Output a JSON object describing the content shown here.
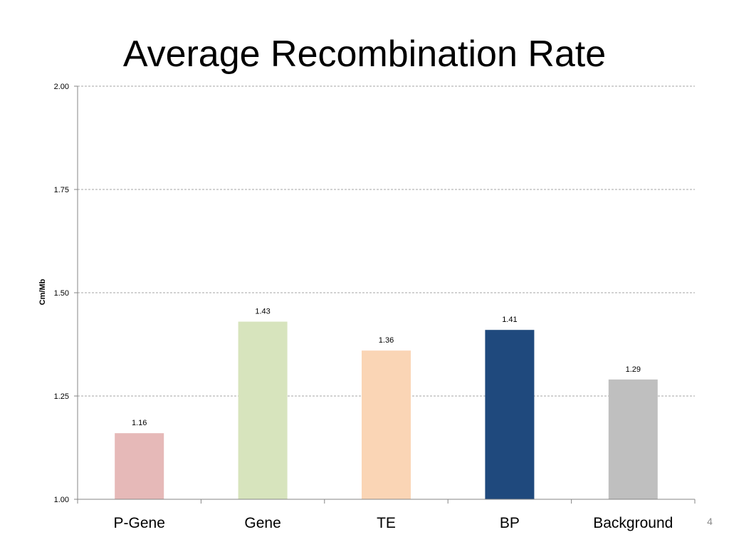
{
  "slide": {
    "number": "4"
  },
  "chart_data": {
    "type": "bar",
    "title": "Average Recombination Rate",
    "xlabel": "",
    "ylabel": "Cm/Mb",
    "categories": [
      "P-Gene",
      "Gene",
      "TE",
      "BP",
      "Background"
    ],
    "values": [
      1.16,
      1.43,
      1.36,
      1.41,
      1.29
    ],
    "data_labels": [
      "1.16",
      "1.43",
      "1.36",
      "1.41",
      "1.29"
    ],
    "ylim": [
      1.0,
      2.0
    ],
    "yticks": [
      1.0,
      1.25,
      1.5,
      1.75,
      2.0
    ],
    "ytick_labels": [
      "1.00",
      "1.25",
      "1.50",
      "1.75",
      "2.00"
    ],
    "grid": true,
    "legend": "none",
    "colors": [
      "#e6b9b8",
      "#d7e4bd",
      "#fad5b5",
      "#1f497d",
      "#bfbfbf"
    ],
    "gridline_color": "#a6a6a6",
    "axis_color": "#868686"
  }
}
